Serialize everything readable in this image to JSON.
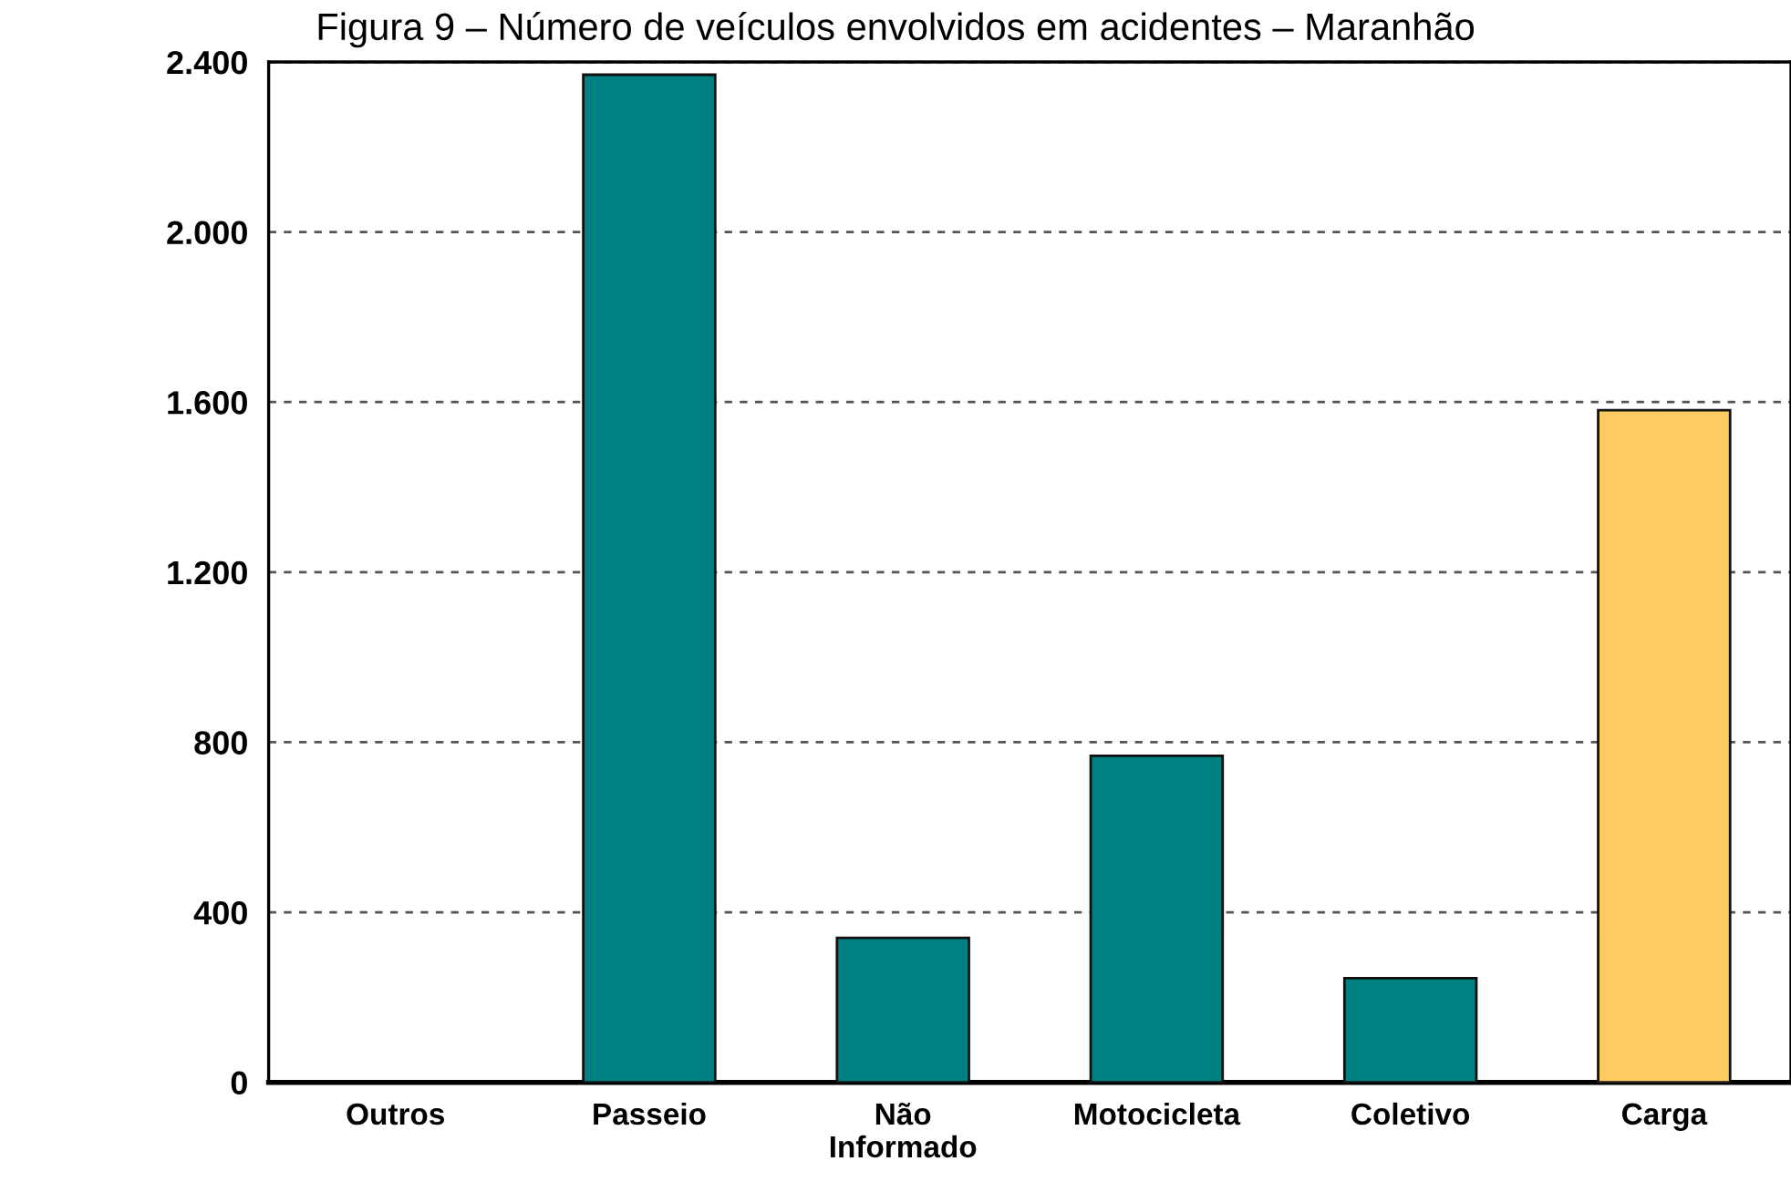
{
  "chart_data": {
    "type": "bar",
    "title": "Figura 9 – Número de veículos envolvidos em acidentes – Maranhão",
    "categories": [
      "Outros",
      "Passeio",
      "Não\nInformado",
      "Motocicleta",
      "Coletivo",
      "Carga"
    ],
    "values": [
      0,
      2370,
      340,
      768,
      245,
      1581
    ],
    "colors": [
      "#008080",
      "#008080",
      "#008080",
      "#008080",
      "#008080",
      "#fccc62"
    ],
    "ylim": [
      0,
      2400
    ],
    "yticks": [
      {
        "value": 0,
        "label": "0"
      },
      {
        "value": 400,
        "label": "400"
      },
      {
        "value": 800,
        "label": "800"
      },
      {
        "value": 1200,
        "label": "1.200"
      },
      {
        "value": 1600,
        "label": "1.600"
      },
      {
        "value": 2000,
        "label": "2.000"
      },
      {
        "value": 2400,
        "label": "2.400"
      }
    ],
    "grid": "y"
  }
}
